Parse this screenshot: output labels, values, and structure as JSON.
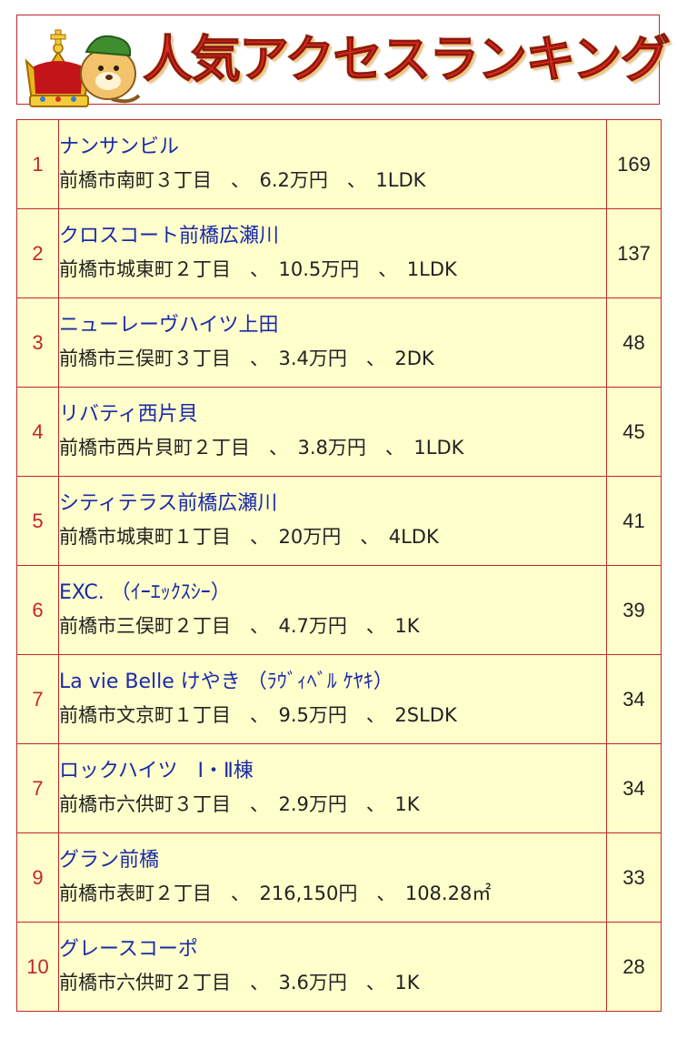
{
  "banner": {
    "title": "人気アクセスランキング"
  },
  "ranking": [
    {
      "rank": "1",
      "name": "ナンサンビル",
      "detail": "前橋市南町３丁目　、　6.2万円　、　1LDK",
      "count": "169"
    },
    {
      "rank": "2",
      "name": "クロスコート前橋広瀬川",
      "detail": "前橋市城東町２丁目　、　10.5万円　、　1LDK",
      "count": "137"
    },
    {
      "rank": "3",
      "name": "ニューレーヴハイツ上田",
      "detail": "前橋市三俣町３丁目　、　3.4万円　、　2DK",
      "count": "48"
    },
    {
      "rank": "4",
      "name": "リバティ西片貝",
      "detail": "前橋市西片貝町２丁目　、　3.8万円　、　1LDK",
      "count": "45"
    },
    {
      "rank": "5",
      "name": "シティテラス前橋広瀬川",
      "detail": "前橋市城東町１丁目　、　20万円　、　4LDK",
      "count": "41"
    },
    {
      "rank": "6",
      "name": "EXC. （ｲｰｴｯｸｽｼｰ）",
      "detail": "前橋市三俣町２丁目　、　4.7万円　、　1K",
      "count": "39"
    },
    {
      "rank": "7",
      "name": "La vie Belle けやき （ﾗｳﾞｨﾍﾞﾙ ｹﾔｷ）",
      "detail": "前橋市文京町１丁目　、　9.5万円　、　2SLDK",
      "count": "34"
    },
    {
      "rank": "7",
      "name": "ロックハイツ　Ⅰ・Ⅱ棟",
      "detail": "前橋市六供町３丁目　、　2.9万円　、　1K",
      "count": "34"
    },
    {
      "rank": "9",
      "name": "グラン前橋",
      "detail": "前橋市表町２丁目　、　216,150円　、　108.28㎡",
      "count": "33"
    },
    {
      "rank": "10",
      "name": "グレースコーポ",
      "detail": "前橋市六供町２丁目　、　3.6万円　、　1K",
      "count": "28"
    }
  ]
}
